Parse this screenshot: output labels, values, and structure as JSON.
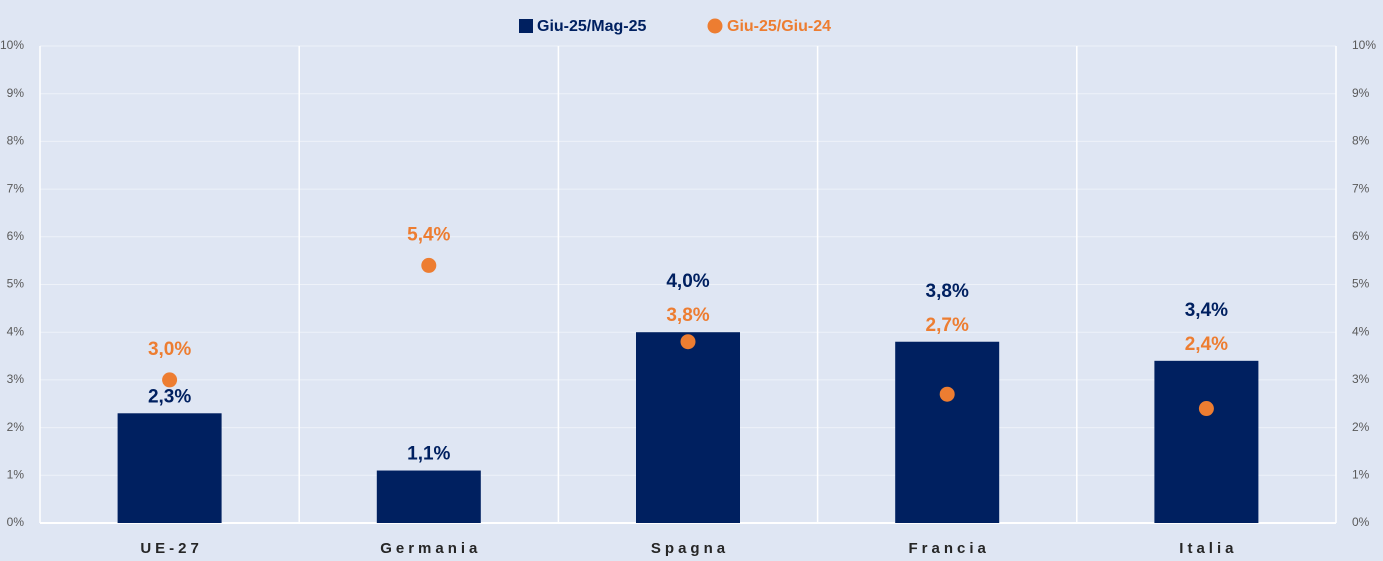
{
  "chart_data": {
    "type": "bar",
    "categories": [
      "UE-27",
      "Germania",
      "Spagna",
      "Francia",
      "Italia"
    ],
    "series": [
      {
        "name": "Giu-25/Mag-25",
        "color": "#002060",
        "values": [
          2.3,
          1.1,
          4.0,
          3.8,
          3.4
        ],
        "value_labels": [
          "2,3%",
          "1,1%",
          "4,0%",
          "3,8%",
          "3,4%"
        ]
      },
      {
        "name": "Giu-25/Giu-24",
        "color": "#ed7d31",
        "type": "scatter",
        "axis": "y2",
        "values": [
          3.0,
          5.4,
          3.8,
          2.7,
          2.4
        ],
        "value_labels": [
          "3,0%",
          "5,4%",
          "3,8%",
          "2,7%",
          "2,4%"
        ]
      }
    ],
    "ylim": [
      0,
      10
    ],
    "yticks": [
      {
        "value": 0,
        "label": "0%"
      },
      {
        "value": 1,
        "label": "1%"
      },
      {
        "value": 2,
        "label": "2%"
      },
      {
        "value": 3,
        "label": "3%"
      },
      {
        "value": 4,
        "label": "4%"
      },
      {
        "value": 5,
        "label": "5%"
      },
      {
        "value": 6,
        "label": "6%"
      },
      {
        "value": 7,
        "label": "7%"
      },
      {
        "value": 8,
        "label": "8%"
      },
      {
        "value": 9,
        "label": "9%"
      },
      {
        "value": 10,
        "label": "10%"
      }
    ],
    "y2lim": [
      0,
      10
    ],
    "y2ticks": [
      {
        "value": 0,
        "label": "0%"
      },
      {
        "value": 1,
        "label": "1%"
      },
      {
        "value": 2,
        "label": "2%"
      },
      {
        "value": 3,
        "label": "3%"
      },
      {
        "value": 4,
        "label": "4%"
      },
      {
        "value": 5,
        "label": "5%"
      },
      {
        "value": 6,
        "label": "6%"
      },
      {
        "value": 7,
        "label": "7%"
      },
      {
        "value": 8,
        "label": "8%"
      },
      {
        "value": 9,
        "label": "9%"
      },
      {
        "value": 10,
        "label": "10%"
      }
    ],
    "grid": true,
    "legend": "top"
  }
}
